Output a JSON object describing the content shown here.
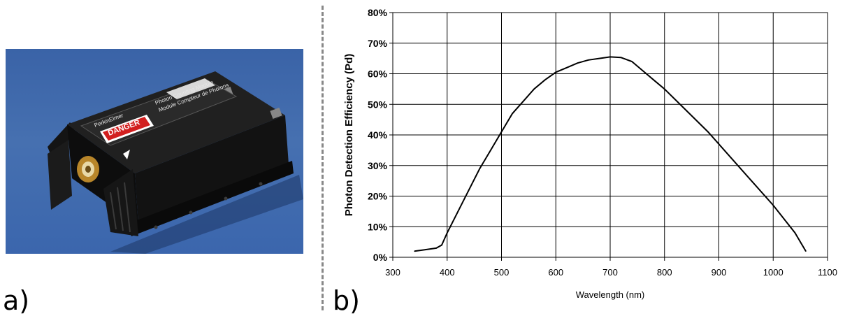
{
  "panels": {
    "a_label": "a)",
    "b_label": "b)"
  },
  "photo": {
    "device_logo": "PerkinElmer",
    "module_title": "Photon Counting Module",
    "module_subtitle": "Module Compteur de Photons",
    "warning_label": "DANGER"
  },
  "chart_data": {
    "type": "line",
    "title": "",
    "xlabel": "Wavelength (nm)",
    "ylabel": "Photon Detection Efficiency   (Pd)",
    "xlim": [
      300,
      1100
    ],
    "ylim": [
      0,
      80
    ],
    "xticks": [
      300,
      400,
      500,
      600,
      700,
      800,
      900,
      1000,
      1100
    ],
    "yticks": [
      0,
      10,
      20,
      30,
      40,
      50,
      60,
      70,
      80
    ],
    "xtick_labels": [
      "300",
      "400",
      "500",
      "600",
      "700",
      "800",
      "900",
      "1000",
      "1100"
    ],
    "ytick_labels": [
      "0%",
      "10%",
      "20%",
      "30%",
      "40%",
      "50%",
      "60%",
      "70%",
      "80%"
    ],
    "grid": true,
    "series": [
      {
        "x": [
          340,
          360,
          380,
          390,
          400,
          420,
          440,
          460,
          480,
          500,
          520,
          540,
          560,
          580,
          600,
          620,
          640,
          660,
          680,
          700,
          720,
          740,
          760,
          780,
          800,
          840,
          880,
          920,
          960,
          1000,
          1040,
          1060
        ],
        "y": [
          2,
          2.5,
          3,
          4,
          8,
          15,
          22,
          29,
          35,
          41,
          47,
          51,
          55,
          58,
          60.5,
          62,
          63.5,
          64.5,
          65,
          65.5,
          65.3,
          64,
          61,
          58,
          55,
          48,
          41,
          33,
          25,
          17,
          8,
          2
        ]
      }
    ]
  }
}
